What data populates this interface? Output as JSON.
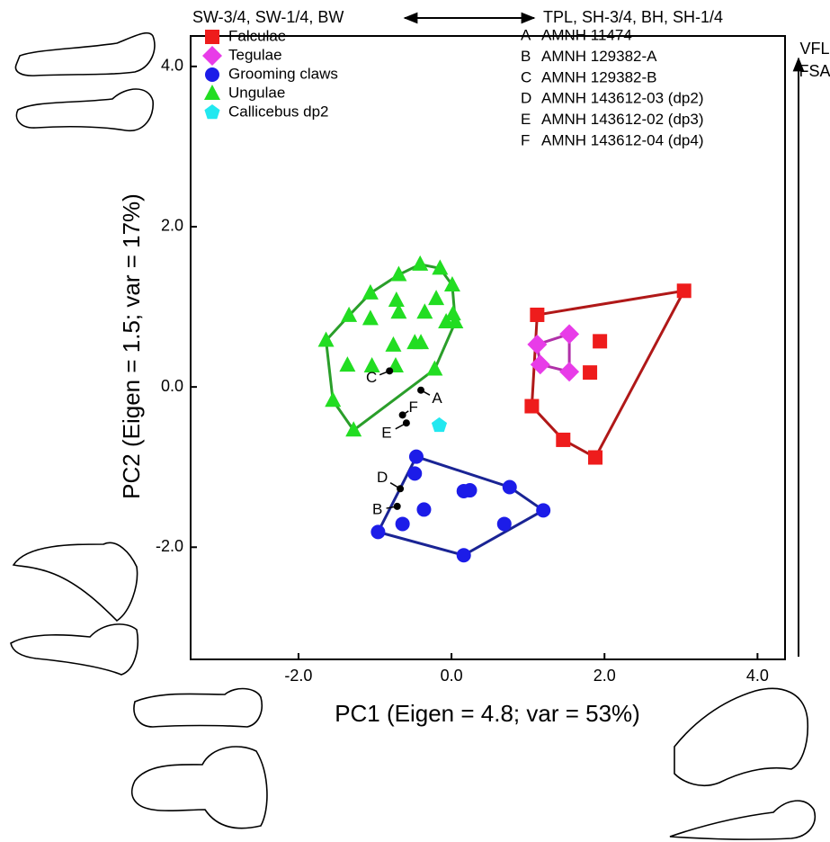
{
  "chart_data": {
    "type": "scatter",
    "xlabel": "PC1 (Eigen = 4.8; var = 53%)",
    "ylabel": "PC2 (Eigen = 1.5; var = 17%)",
    "xlim": [
      -3.41,
      4.36
    ],
    "ylim": [
      -3.4,
      4.38
    ],
    "xticks": [
      {
        "value": -2,
        "label": "-2.0"
      },
      {
        "value": 0,
        "label": "0.0"
      },
      {
        "value": 2,
        "label": "2.0"
      },
      {
        "value": 4,
        "label": "4.0"
      }
    ],
    "yticks": [
      {
        "value": 4,
        "label": "4.0"
      },
      {
        "value": 2,
        "label": "2.0"
      },
      {
        "value": 0,
        "label": "0.0"
      },
      {
        "value": -2,
        "label": "-2.0"
      }
    ],
    "top_left_label": "SW-3/4, SW-1/4, BW",
    "top_right_label": "TPL, SH-3/4, BH, SH-1/4",
    "right_labels": [
      "VFL",
      "FSA"
    ],
    "series": [
      {
        "name": "Falculae",
        "color": "#ee1c1c",
        "marker": "square",
        "hull_color": "#b01818",
        "x": [
          1.12,
          3.04,
          1.94,
          1.81,
          1.05,
          1.46,
          1.88
        ],
        "y": [
          0.9,
          1.2,
          0.57,
          0.18,
          -0.24,
          -0.66,
          -0.88
        ]
      },
      {
        "name": "Tegulae",
        "color": "#e83ce8",
        "marker": "diamond",
        "hull_color": "#b030a8",
        "x": [
          1.12,
          1.54,
          1.16,
          1.54
        ],
        "y": [
          0.53,
          0.66,
          0.28,
          0.19
        ]
      },
      {
        "name": "Grooming claws",
        "color": "#1c1ce8",
        "marker": "circle",
        "hull_color": "#1a2494",
        "x": [
          -0.46,
          -0.48,
          -0.36,
          -0.64,
          -0.96,
          0.16,
          0.24,
          0.76,
          0.69,
          1.2,
          0.16
        ],
        "y": [
          -0.87,
          -1.08,
          -1.53,
          -1.71,
          -1.81,
          -1.3,
          -1.29,
          -1.25,
          -1.71,
          -1.54,
          -2.1
        ]
      },
      {
        "name": "Ungulae",
        "color": "#22dd22",
        "marker": "triangle",
        "hull_color": "#2a9e2a",
        "x": [
          -0.41,
          -0.15,
          -0.69,
          0.01,
          -1.06,
          -0.72,
          -0.2,
          -0.35,
          -0.69,
          0.02,
          0.05,
          -1.34,
          -1.06,
          -0.07,
          -1.64,
          -0.48,
          -0.4,
          -0.76,
          -1.36,
          -1.04,
          -0.73,
          -0.22,
          -1.55,
          -1.28
        ],
        "y": [
          1.53,
          1.48,
          1.4,
          1.27,
          1.17,
          1.08,
          1.1,
          0.93,
          0.93,
          0.91,
          0.81,
          0.89,
          0.85,
          0.81,
          0.58,
          0.55,
          0.55,
          0.52,
          0.27,
          0.26,
          0.26,
          0.22,
          -0.17,
          -0.54
        ]
      },
      {
        "name": "Callicebus dp2",
        "color": "#22e8f0",
        "marker": "pentagon",
        "x": [
          -0.16
        ],
        "y": [
          -0.48
        ]
      }
    ],
    "specimens": [
      {
        "label": "A",
        "name": "AMNH 11474",
        "x": -0.4,
        "y": -0.04
      },
      {
        "label": "B",
        "name": "AMNH 129382-A",
        "x": -0.71,
        "y": -1.49
      },
      {
        "label": "C",
        "name": "AMNH 129382-B",
        "x": -0.81,
        "y": 0.2
      },
      {
        "label": "D",
        "name": "AMNH 143612-03 (dp2)",
        "x": -0.67,
        "y": -1.27
      },
      {
        "label": "E",
        "name": "AMNH 143612-02 (dp3)",
        "x": -0.59,
        "y": -0.45
      },
      {
        "label": "F",
        "name": "AMNH 143612-04 (dp4)",
        "x": -0.64,
        "y": -0.35
      }
    ]
  }
}
